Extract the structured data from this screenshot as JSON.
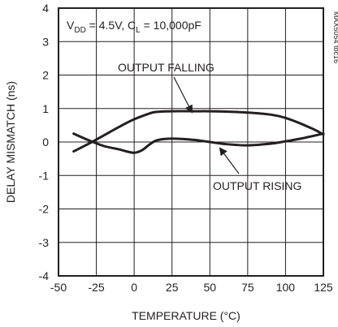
{
  "chart_data": {
    "type": "line",
    "title": "",
    "xlabel": "TEMPERATURE (°C)",
    "ylabel": "DELAY MISMATCH (ns)",
    "xlim": [
      -50,
      125
    ],
    "ylim": [
      -4,
      4
    ],
    "xticks": [
      -50,
      -25,
      0,
      25,
      50,
      75,
      100,
      125
    ],
    "yticks": [
      -4,
      -3,
      -2,
      -1,
      0,
      1,
      2,
      3,
      4
    ],
    "grid": true,
    "legend": "none",
    "conditions": {
      "vdd_sub": "DD",
      "vdd_rest": " = 4.5V, C",
      "cl_sub": "L",
      "cl_rest": " = 10,000pF"
    },
    "figure_id": "MAX5054 toc16",
    "series": [
      {
        "name": "OUTPUT FALLING",
        "x": [
          -40,
          -30,
          -20,
          -10,
          0,
          10,
          15,
          25,
          40,
          50,
          60,
          75,
          90,
          100,
          110,
          120,
          125
        ],
        "y": [
          -0.28,
          -0.05,
          0.2,
          0.45,
          0.68,
          0.85,
          0.9,
          0.92,
          0.92,
          0.92,
          0.91,
          0.88,
          0.82,
          0.72,
          0.55,
          0.35,
          0.22
        ]
      },
      {
        "name": "OUTPUT RISING",
        "x": [
          -40,
          -30,
          -20,
          -10,
          -5,
          0,
          5,
          10,
          15,
          25,
          40,
          50,
          60,
          75,
          90,
          100,
          110,
          120,
          125
        ],
        "y": [
          0.25,
          0.05,
          -0.12,
          -0.22,
          -0.28,
          -0.32,
          -0.25,
          -0.08,
          0.05,
          0.1,
          0.06,
          0.0,
          -0.06,
          -0.1,
          -0.05,
          0.02,
          0.1,
          0.2,
          0.25
        ]
      }
    ],
    "annotations": [
      {
        "text": "OUTPUT FALLING",
        "series": "OUTPUT FALLING"
      },
      {
        "text": "OUTPUT RISING",
        "series": "OUTPUT RISING"
      }
    ]
  }
}
